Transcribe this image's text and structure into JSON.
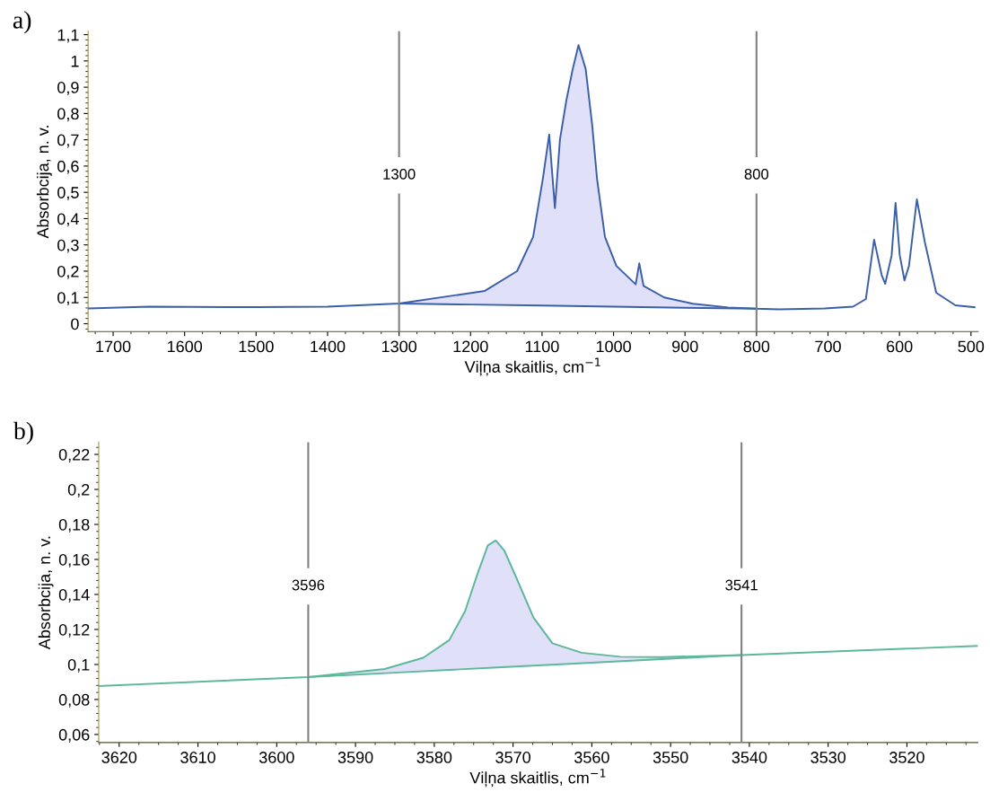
{
  "chart_data": [
    {
      "type": "line",
      "xlabel": "Viļņa skaitlis, cm$^{−1}$",
      "ylabel": "Absorbcija, n. v.",
      "annotations": [
        "a)"
      ],
      "xlim": [
        1735,
        490
      ],
      "xticks": [
        1700,
        1600,
        1500,
        1400,
        1300,
        1200,
        1100,
        1000,
        900,
        800,
        700,
        600,
        500
      ],
      "ylim": [
        -0.03,
        1.113
      ],
      "yticks": [
        0,
        {
          "value": 0.1,
          "label": "0,1"
        },
        {
          "value": 0.2,
          "label": "0,2"
        },
        {
          "value": 0.3,
          "label": "0,3"
        },
        {
          "value": 0.4,
          "label": "0,4"
        },
        {
          "value": 0.5,
          "label": "0,5"
        },
        {
          "value": 0.6,
          "label": "0,6"
        },
        {
          "value": 0.7,
          "label": "0,7"
        },
        {
          "value": 0.8,
          "label": "0,8"
        },
        {
          "value": 0.9,
          "label": "0,9"
        },
        1,
        {
          "value": 1.1,
          "label": "1,1"
        }
      ],
      "grid": false,
      "marker": "none",
      "line_style": "solid",
      "ref_lines": [
        {
          "axis": "x",
          "value": 1300,
          "label": "1300",
          "color": "#808080"
        },
        {
          "axis": "x",
          "value": 800,
          "label": "800",
          "color": "#808080"
        }
      ],
      "series": [
        {
          "type": "area",
          "color": "#e0e0f8",
          "x": [
            1300,
            1180,
            1135,
            1112.5,
            1099,
            1090,
            1082,
            1075,
            1066,
            1057,
            1049,
            1039,
            1030,
            1023,
            1012,
            996,
            969,
            964,
            958,
            929,
            889,
            839.6,
            800
          ],
          "values": [
            0.077,
            0.125,
            0.2,
            0.33,
            0.55,
            0.72,
            0.44,
            0.7,
            0.85,
            0.97,
            1.06,
            0.97,
            0.76,
            0.55,
            0.33,
            0.22,
            0.15,
            0.23,
            0.144,
            0.1,
            0.076,
            0.062,
            0.057
          ]
        },
        {
          "color": "#3a5fa8",
          "x": [
            1735,
            1650,
            1500,
            1400,
            1300,
            1180,
            1135,
            1112.5,
            1099,
            1090,
            1082,
            1075,
            1066,
            1057,
            1049,
            1039,
            1030,
            1023,
            1012,
            996,
            969,
            964,
            958,
            929,
            889,
            839.6,
            800,
            768,
            705,
            665,
            647,
            635.5,
            625,
            620,
            611,
            605.5,
            599.6,
            593,
            586.7,
            575.7,
            564.5,
            548.6,
            521.8,
            495
          ],
          "values": [
            0.058,
            0.065,
            0.063,
            0.065,
            0.077,
            0.125,
            0.2,
            0.33,
            0.55,
            0.72,
            0.44,
            0.7,
            0.85,
            0.97,
            1.06,
            0.97,
            0.76,
            0.55,
            0.33,
            0.22,
            0.15,
            0.23,
            0.144,
            0.1,
            0.076,
            0.062,
            0.057,
            0.055,
            0.058,
            0.065,
            0.094,
            0.32,
            0.186,
            0.152,
            0.26,
            0.46,
            0.26,
            0.165,
            0.22,
            0.473,
            0.31,
            0.118,
            0.07,
            0.063
          ]
        },
        {
          "color": "#3a5fa8",
          "x": [
            1300,
            1200,
            1100,
            1000,
            900,
            800
          ],
          "values": [
            0.077,
            0.073,
            0.069,
            0.065,
            0.061,
            0.057
          ]
        }
      ]
    },
    {
      "type": "line",
      "xlabel": "Viļņa skaitlis, cm$^{−1}$",
      "ylabel": "Absorbcija, n. v.",
      "annotations": [
        "b)"
      ],
      "xlim": [
        3622.6,
        3511
      ],
      "xticks": [
        3620,
        3610,
        3600,
        3590,
        3580,
        3570,
        3560,
        3550,
        3540,
        3530,
        3520
      ],
      "ylim": [
        0.0554,
        0.227
      ],
      "yticks": [
        {
          "value": 0.06,
          "label": "0,06"
        },
        {
          "value": 0.08,
          "label": "0,08"
        },
        {
          "value": 0.1,
          "label": "0,1"
        },
        {
          "value": 0.12,
          "label": "0,12"
        },
        {
          "value": 0.14,
          "label": "0,14"
        },
        {
          "value": 0.16,
          "label": "0,16"
        },
        {
          "value": 0.18,
          "label": "0,18"
        },
        {
          "value": 0.2,
          "label": "0,2"
        },
        {
          "value": 0.22,
          "label": "0,22"
        }
      ],
      "grid": false,
      "marker": "none",
      "line_style": "solid",
      "ref_lines": [
        {
          "axis": "x",
          "value": 3596,
          "label": "3596",
          "color": "#808080"
        },
        {
          "axis": "x",
          "value": 3541,
          "label": "3541",
          "color": "#808080"
        }
      ],
      "series": [
        {
          "type": "area",
          "color": "#e0e0f8",
          "x": [
            3596,
            3586.3,
            3581.4,
            3578.1,
            3576.1,
            3574.5,
            3573.2,
            3572.2,
            3571.1,
            3569.5,
            3567.4,
            3565,
            3561.3,
            3556.4,
            3551.1,
            3541
          ],
          "values": [
            0.0928,
            0.0974,
            0.1038,
            0.1139,
            0.1304,
            0.152,
            0.168,
            0.1708,
            0.165,
            0.1487,
            0.1267,
            0.1121,
            0.1067,
            0.1044,
            0.1042,
            0.1054
          ]
        },
        {
          "color": "#5bb89a",
          "x": [
            3622.6,
            3596,
            3586.3,
            3581.4,
            3578.1,
            3576.1,
            3574.5,
            3573.2,
            3572.2,
            3571.1,
            3569.5,
            3567.4,
            3565,
            3561.3,
            3556.4,
            3551.1,
            3541,
            3511
          ],
          "values": [
            0.0877,
            0.0928,
            0.0974,
            0.1038,
            0.1139,
            0.1304,
            0.152,
            0.168,
            0.1708,
            0.165,
            0.1487,
            0.1267,
            0.1121,
            0.1067,
            0.1044,
            0.1042,
            0.1054,
            0.1106
          ]
        },
        {
          "color": "#5bb89a",
          "x": [
            3596,
            3585,
            3572,
            3560,
            3550,
            3541
          ],
          "values": [
            0.0928,
            0.0953,
            0.0983,
            0.101,
            0.1033,
            0.1054
          ]
        }
      ]
    }
  ]
}
